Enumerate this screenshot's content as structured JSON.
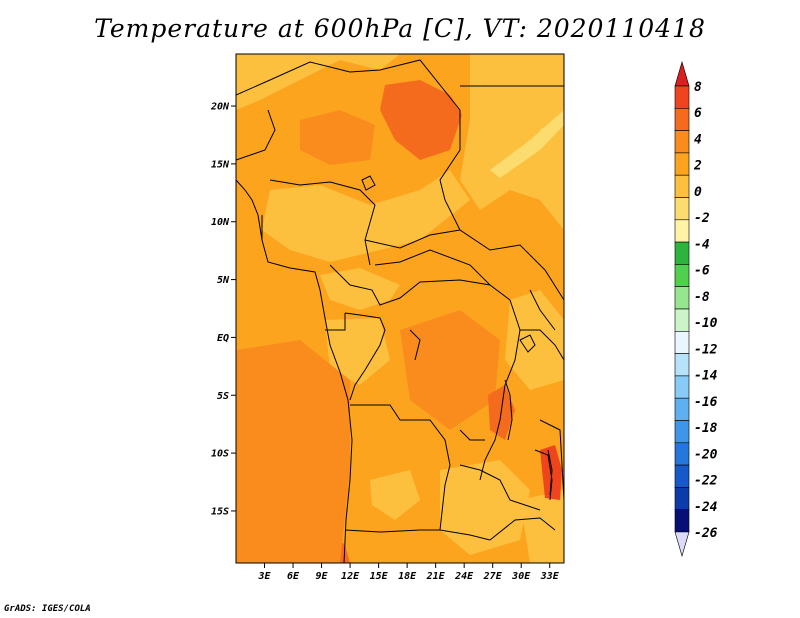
{
  "title": "Temperature at 600hPa [C], VT: 2020110418",
  "credit": "GrADS: IGES/COLA",
  "map": {
    "lat_ticks": [
      "20N",
      "15N",
      "10N",
      "5N",
      "EQ",
      "5S",
      "10S",
      "15S"
    ],
    "lat_values": [
      20,
      15,
      10,
      5,
      0,
      -5,
      -10,
      -15
    ],
    "lon_ticks": [
      "3E",
      "6E",
      "9E",
      "12E",
      "15E",
      "18E",
      "21E",
      "24E",
      "27E",
      "30E",
      "33E"
    ],
    "lon_values": [
      3,
      6,
      9,
      12,
      15,
      18,
      21,
      24,
      27,
      30,
      33
    ],
    "lat_range": [
      -19.5,
      24.5
    ],
    "lon_range": [
      0,
      34.5
    ]
  },
  "colorbar": {
    "labels": [
      "8",
      "6",
      "4",
      "2",
      "0",
      "-2",
      "-4",
      "-6",
      "-8",
      "-10",
      "-12",
      "-14",
      "-16",
      "-18",
      "-20",
      "-22",
      "-24",
      "-26"
    ],
    "colors": [
      "#dd1e1e",
      "#f0441e",
      "#f56b1e",
      "#fa8c1e",
      "#fca41e",
      "#fcc03e",
      "#fcdc6e",
      "#fff3a8",
      "#2cb43c",
      "#50d04e",
      "#96e690",
      "#cbf5c8",
      "#e8f6fd",
      "#b6e2fa",
      "#88cbf7",
      "#5fb0f1",
      "#3f95e8",
      "#2677dc",
      "#1659cb",
      "#0c3caa",
      "#060f78",
      "#dcdcfa"
    ]
  }
}
